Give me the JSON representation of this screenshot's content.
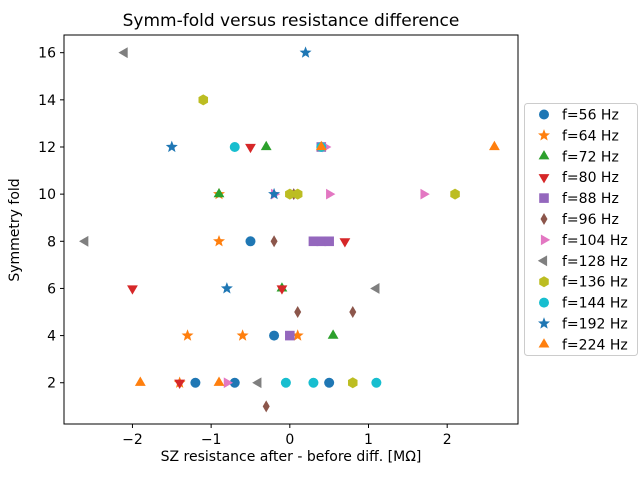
{
  "chart_data": {
    "type": "scatter",
    "title": "Symm-fold versus resistance difference",
    "xlabel": "SZ resistance after - before diff. [MΩ]",
    "ylabel": "Symmetry fold",
    "xlim": [
      -2.87,
      2.9
    ],
    "ylim": [
      0.25,
      16.75
    ],
    "xticks": [
      -2,
      -1,
      0,
      1,
      2
    ],
    "yticks": [
      2,
      4,
      6,
      8,
      10,
      12,
      14,
      16
    ],
    "grid": false,
    "legend_position": "center-right-outside",
    "series": [
      {
        "name": "f=56 Hz",
        "color": "#1f77b4",
        "marker": "circle",
        "points": [
          [
            -0.5,
            8
          ],
          [
            -0.2,
            4
          ],
          [
            -1.2,
            2
          ],
          [
            -0.7,
            2
          ],
          [
            0.5,
            2
          ]
        ]
      },
      {
        "name": "f=64 Hz",
        "color": "#ff7f0e",
        "marker": "star",
        "points": [
          [
            -0.9,
            10
          ],
          [
            -0.9,
            8
          ],
          [
            -1.3,
            4
          ],
          [
            -0.6,
            4
          ],
          [
            0.1,
            4
          ],
          [
            -1.4,
            2
          ]
        ]
      },
      {
        "name": "f=72 Hz",
        "color": "#2ca02c",
        "marker": "triangle-up",
        "points": [
          [
            -0.3,
            12
          ],
          [
            -0.9,
            10
          ],
          [
            -0.1,
            6
          ],
          [
            0.55,
            4
          ]
        ]
      },
      {
        "name": "f=80 Hz",
        "color": "#d62728",
        "marker": "triangle-down",
        "points": [
          [
            -0.5,
            12
          ],
          [
            0.7,
            8
          ],
          [
            -2.0,
            6
          ],
          [
            -0.1,
            6
          ],
          [
            -1.4,
            2
          ]
        ]
      },
      {
        "name": "f=88 Hz",
        "color": "#9467bd",
        "marker": "square",
        "points": [
          [
            0.4,
            12
          ],
          [
            0.3,
            8
          ],
          [
            0.4,
            8
          ],
          [
            0.5,
            8
          ],
          [
            0.0,
            4
          ]
        ]
      },
      {
        "name": "f=96 Hz",
        "color": "#8c564b",
        "marker": "thin-diamond",
        "points": [
          [
            0.05,
            10
          ],
          [
            -0.2,
            8
          ],
          [
            0.1,
            5
          ],
          [
            0.8,
            5
          ],
          [
            -0.3,
            1
          ]
        ]
      },
      {
        "name": "f=104 Hz",
        "color": "#e377c2",
        "marker": "triangle-right",
        "points": [
          [
            0.45,
            12
          ],
          [
            -0.2,
            10
          ],
          [
            0.5,
            10
          ],
          [
            1.7,
            10
          ],
          [
            -0.8,
            2
          ]
        ]
      },
      {
        "name": "f=128 Hz",
        "color": "#7f7f7f",
        "marker": "triangle-left",
        "points": [
          [
            -2.1,
            16
          ],
          [
            -2.6,
            8
          ],
          [
            1.1,
            6
          ],
          [
            -0.4,
            2
          ]
        ]
      },
      {
        "name": "f=136 Hz",
        "color": "#bcbd22",
        "marker": "hexagon",
        "points": [
          [
            -1.1,
            14
          ],
          [
            0.0,
            10
          ],
          [
            0.1,
            10
          ],
          [
            2.1,
            10
          ],
          [
            0.8,
            2
          ]
        ]
      },
      {
        "name": "f=144 Hz",
        "color": "#17becf",
        "marker": "circle",
        "points": [
          [
            -0.7,
            12
          ],
          [
            0.4,
            12
          ],
          [
            -0.05,
            2
          ],
          [
            0.3,
            2
          ],
          [
            1.1,
            2
          ]
        ]
      },
      {
        "name": "f=192 Hz",
        "color": "#1f77b4",
        "marker": "star",
        "points": [
          [
            0.2,
            16
          ],
          [
            -1.5,
            12
          ],
          [
            -0.2,
            10
          ],
          [
            -0.8,
            6
          ]
        ]
      },
      {
        "name": "f=224 Hz",
        "color": "#ff7f0e",
        "marker": "triangle-up",
        "points": [
          [
            2.6,
            12
          ],
          [
            0.4,
            12
          ],
          [
            -1.9,
            2
          ],
          [
            -0.9,
            2
          ]
        ]
      }
    ]
  }
}
